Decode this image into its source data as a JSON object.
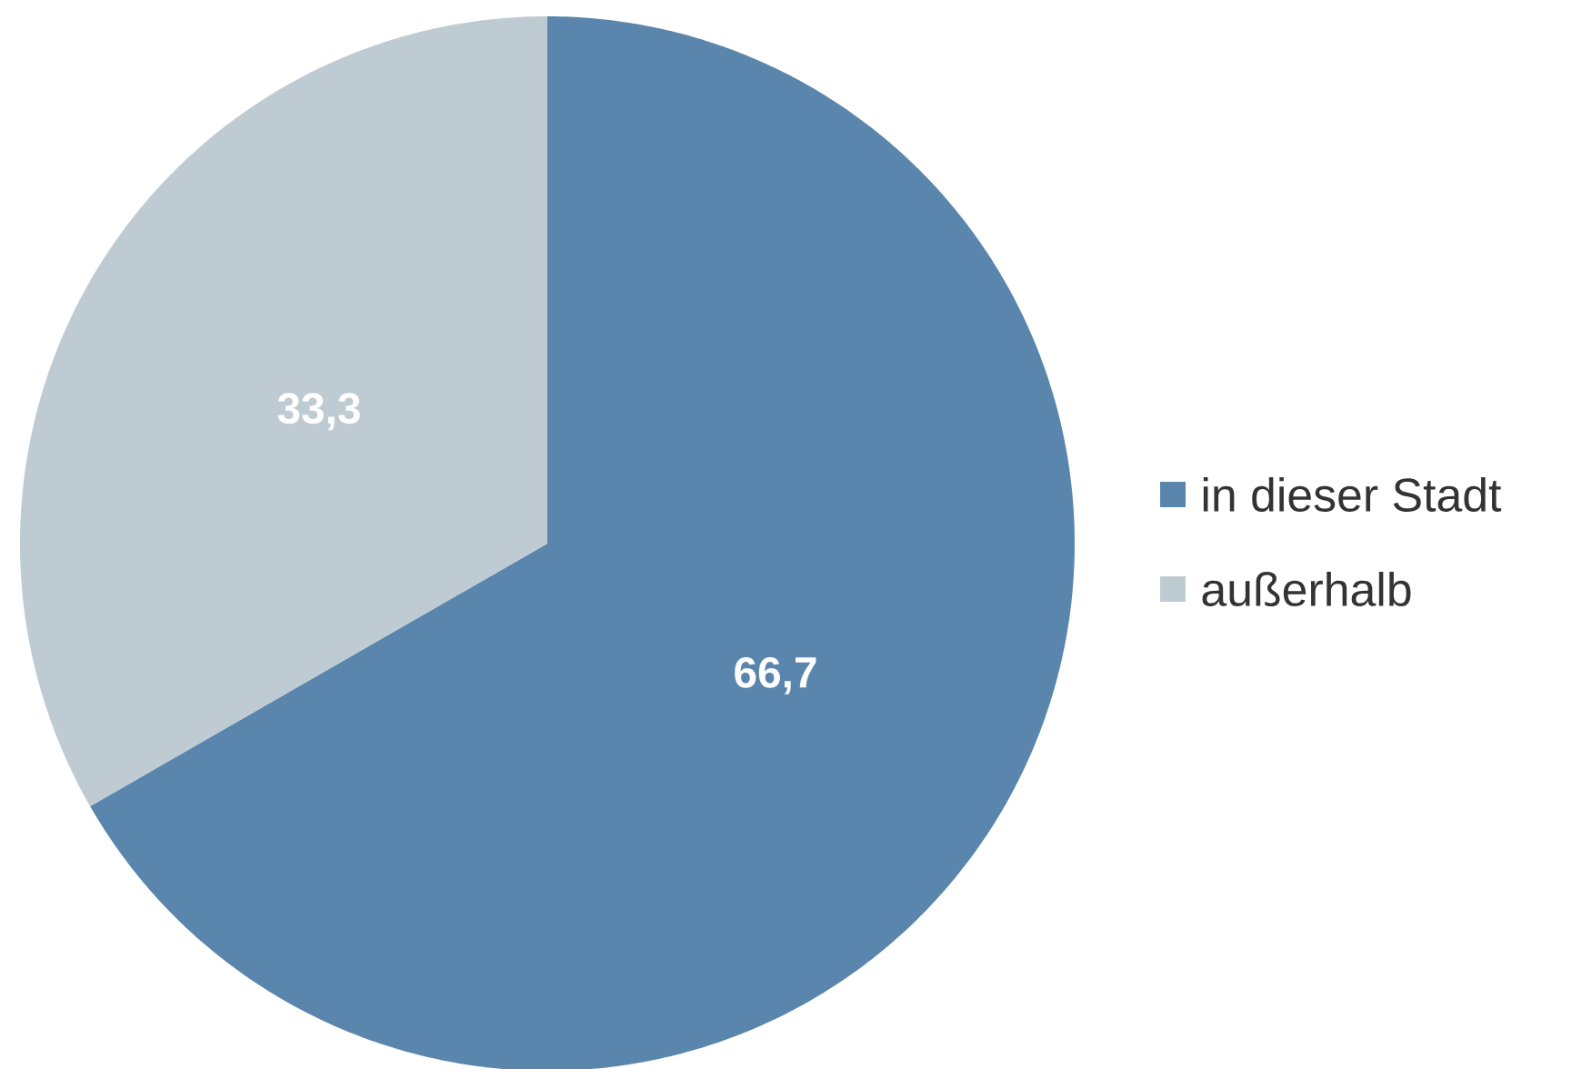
{
  "chart_data": {
    "type": "pie",
    "categories": [
      "in dieser Stadt",
      "außerhalb"
    ],
    "values": [
      66.7,
      33.3
    ],
    "colors": [
      "#5a86ad",
      "#bfcbd3"
    ],
    "value_labels": [
      "66,7",
      "33,3"
    ],
    "legend": "right"
  }
}
